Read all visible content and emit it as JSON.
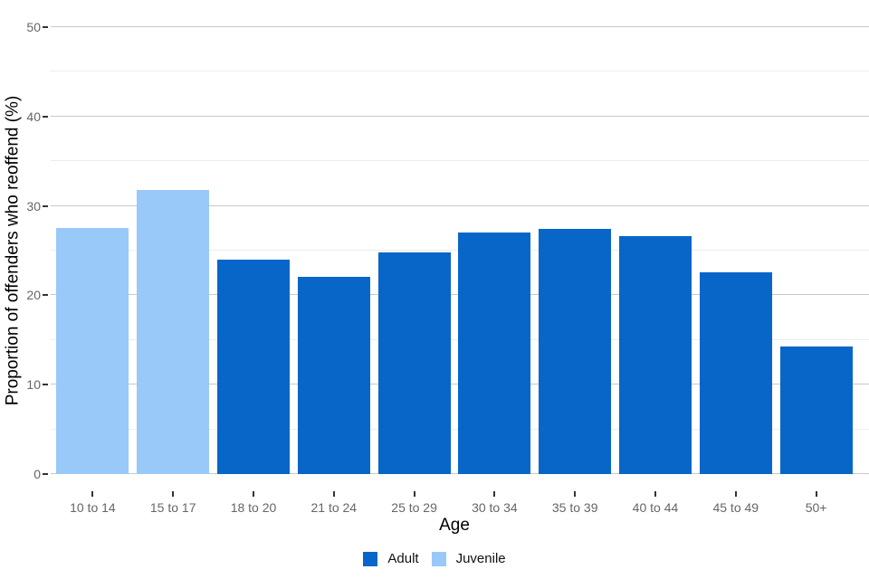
{
  "colors": {
    "adult": "#0866C8",
    "juvenile": "#99C9F9",
    "grid_major": "#c9c9c9",
    "grid_minor": "#ededed",
    "axis_text": "#666666",
    "tick_mark": "#333333",
    "axis_title": "#000000",
    "background": "#ffffff"
  },
  "chart_data": {
    "type": "bar",
    "title": "",
    "xlabel": "Age",
    "ylabel": "Proportion of offenders who reoffend (%)",
    "ylim": [
      0,
      50
    ],
    "grid": "horizontal-only",
    "y_major_ticks": [
      0,
      10,
      20,
      30,
      40,
      50
    ],
    "y_minor_gridlines": [
      5,
      15,
      25,
      35,
      45
    ],
    "categories": [
      "10 to 14",
      "15 to 17",
      "18 to 20",
      "21 to 24",
      "25 to 29",
      "30 to 34",
      "35 to 39",
      "40 to 44",
      "45 to 49",
      "50+"
    ],
    "values": [
      27.5,
      31.8,
      24.0,
      22.1,
      24.8,
      27.0,
      27.4,
      26.6,
      22.6,
      14.3
    ],
    "bar_series": [
      "Juvenile",
      "Juvenile",
      "Adult",
      "Adult",
      "Adult",
      "Adult",
      "Adult",
      "Adult",
      "Adult",
      "Adult"
    ],
    "series_colors": {
      "Adult": "#0866C8",
      "Juvenile": "#99C9F9"
    },
    "legend_position": "bottom-center",
    "legend": [
      {
        "label": "Adult",
        "color": "#0866C8"
      },
      {
        "label": "Juvenile",
        "color": "#99C9F9"
      }
    ]
  }
}
